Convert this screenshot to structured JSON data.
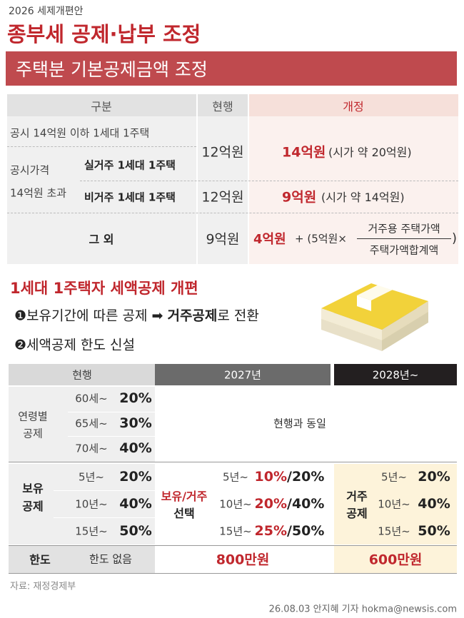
{
  "header": {
    "kicker": "2026 세제개편안",
    "title": "종부세 공제·납부 조정",
    "banner": "주택분 기본공제금액 조정"
  },
  "table1": {
    "columns": [
      "구분",
      "현행",
      "개정"
    ],
    "group_label": [
      "공시가격",
      "14억원 초과"
    ],
    "rows": [
      {
        "label": "공시 14억원 이하 1세대 1주택"
      },
      {
        "label": "실거주 1세대 1주택"
      },
      {
        "label": "비거주 1세대 1주택",
        "current": "12억원",
        "revised": "9억원",
        "note": "(시가 약 14억원)"
      },
      {
        "label": "그 외",
        "current": "9억원"
      }
    ],
    "shared": {
      "current": "12억원",
      "revised": "14억원",
      "note": "(시가 약 20억원)"
    },
    "formula": {
      "base": "4억원",
      "plus": "+ (5억원×",
      "numerator": "거주용 주택가액",
      "denominator": "주택가액합계액",
      "close": ")"
    }
  },
  "section2": {
    "title": "1세대 1주택자 세액공제 개편",
    "items": [
      {
        "number": "❶",
        "text": "보유기간에 따른 공제",
        "arrow": "➡",
        "bold": "거주공제",
        "rest": "로 전환"
      },
      {
        "number": "❷",
        "text": "세액공제 한도 신설"
      }
    ]
  },
  "table2": {
    "columns": [
      "현행",
      "2027년",
      "2028년~"
    ],
    "age": {
      "label": [
        "연령별",
        "공제"
      ],
      "items": [
        [
          "60세~",
          "20%"
        ],
        [
          "65세~",
          "30%"
        ],
        [
          "70세~",
          "40%"
        ]
      ],
      "y2027": "현행과 동일"
    },
    "holding": {
      "label": [
        "보유",
        "공제"
      ],
      "items": [
        [
          "5년~",
          "20%"
        ],
        [
          "10년~",
          "40%"
        ],
        [
          "15년~",
          "50%"
        ]
      ],
      "y2027_label": [
        "보유/거주",
        "선택"
      ],
      "y2027": [
        {
          "period": "5년~",
          "hold": "10%",
          "reside": "/20%"
        },
        {
          "period": "10년~",
          "hold": "20%",
          "reside": "/40%"
        },
        {
          "period": "15년~",
          "hold": "25%",
          "reside": "/50%"
        }
      ],
      "y2028_label": [
        "거주",
        "공제"
      ],
      "y2028": [
        [
          "5년~",
          "20%"
        ],
        [
          "10년~",
          "40%"
        ],
        [
          "15년~",
          "50%"
        ]
      ]
    },
    "limit": {
      "label": "한도",
      "current": "한도 없음",
      "y2027": "800만원",
      "y2028": "600만원"
    }
  },
  "footer": {
    "source": "자료: 재정경제부",
    "credit": "26.08.03 안지혜 기자 hokma@newsis.com"
  }
}
